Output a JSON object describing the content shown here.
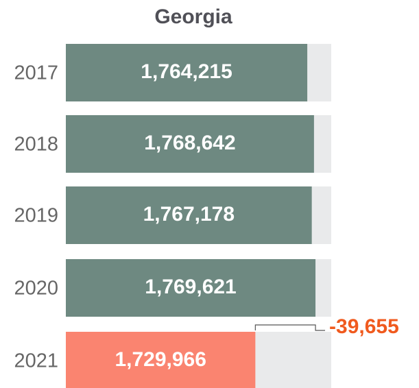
{
  "chart_data": {
    "type": "bar",
    "orientation": "horizontal",
    "title": "Georgia",
    "categories": [
      "2017",
      "2018",
      "2019",
      "2020",
      "2021"
    ],
    "values": [
      1764215,
      1768642,
      1767178,
      1769621,
      1729966
    ],
    "value_labels": [
      "1,764,215",
      "1,768,642",
      "1,767,178",
      "1,769,621",
      "1,729,966"
    ],
    "colors": [
      "#6e8981",
      "#6e8981",
      "#6e8981",
      "#6e8981",
      "#fa8470"
    ],
    "track_color": "#e9eaeb",
    "xlim": [
      1605000,
      1780000
    ],
    "difference": {
      "value": -39655,
      "label": "-39,655",
      "color": "#f05a1e"
    }
  }
}
